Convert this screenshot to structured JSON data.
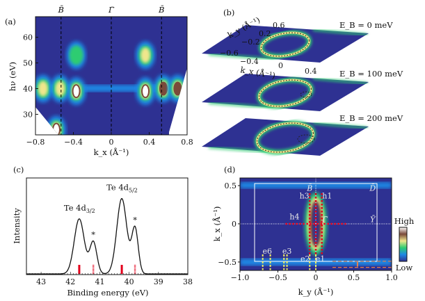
{
  "chart_data": [
    {
      "panel": "(a)",
      "type": "heatmap",
      "xlabel": "k_x (Å⁻¹)",
      "ylabel": "hν (eV)",
      "xlim": [
        -0.8,
        0.8
      ],
      "ylim": [
        22,
        68
      ],
      "xticks": [
        "−0.8",
        "−0.4",
        "0",
        "0.4",
        "0.8"
      ],
      "xtick_values": [
        -0.8,
        -0.4,
        0,
        0.4,
        0.8
      ],
      "yticks": [
        "30",
        "40",
        "50",
        "60"
      ],
      "ytick_values": [
        30,
        40,
        50,
        60
      ],
      "markers": [
        {
          "label": "B̄",
          "x": -0.53
        },
        {
          "label": "Γ̄",
          "x": 0
        },
        {
          "label": "B̄",
          "x": 0.53
        }
      ],
      "hot_spots": [
        {
          "x": -0.37,
          "y": 39,
          "level": 1.0
        },
        {
          "x": 0.36,
          "y": 39,
          "level": 1.0
        },
        {
          "x": 0.55,
          "y": 40,
          "level": 0.9
        },
        {
          "x": 0.7,
          "y": 40,
          "level": 0.8
        },
        {
          "x": -0.58,
          "y": 24,
          "level": 1.0
        },
        {
          "x": -0.72,
          "y": 40,
          "level": 0.6
        },
        {
          "x": -0.54,
          "y": 40,
          "level": 0.6
        },
        {
          "x": -0.37,
          "y": 53,
          "level": 0.45
        },
        {
          "x": 0.36,
          "y": 53,
          "level": 0.55
        }
      ],
      "colormap": [
        "#2e3192",
        "#1e88e5",
        "#2ecc71",
        "#f0e68c",
        "#7b4a3a",
        "#ffffff"
      ]
    },
    {
      "panel": "(b)",
      "type": "heatmap",
      "slices": [
        {
          "label": "E_B = 0 meV",
          "prefix": "E",
          "sub": "B",
          "value": "= 0 meV"
        },
        {
          "label": "E_B = 100 meV",
          "prefix": "E",
          "sub": "B",
          "value": "= 100 meV"
        },
        {
          "label": "E_B = 200 meV",
          "prefix": "E",
          "sub": "B",
          "value": "= 200 meV"
        }
      ],
      "ky_ticks": [
        "0.6",
        "0.2",
        "−0.2",
        "−0.6"
      ],
      "kx_ticks": [
        "−0.4",
        "0",
        "0.4"
      ],
      "ky_label": "k_y (Å⁻¹)",
      "kx_label": "k_x (Å⁻¹)"
    },
    {
      "panel": "(c)",
      "type": "line",
      "xlabel": "Binding energy (eV)",
      "ylabel": "Intensity",
      "xlim": [
        43.5,
        38
      ],
      "x_reversed": true,
      "xticks": [
        "43",
        "42",
        "41",
        "40",
        "39",
        "38"
      ],
      "xtick_values": [
        43,
        42,
        41,
        40,
        39,
        38
      ],
      "peaks": [
        {
          "center": 41.7,
          "height": 0.57,
          "width": 0.17
        },
        {
          "center": 41.22,
          "height": 0.33,
          "width": 0.12
        },
        {
          "center": 40.25,
          "height": 0.78,
          "width": 0.17
        },
        {
          "center": 39.8,
          "height": 0.47,
          "width": 0.11
        }
      ],
      "annotations": [
        {
          "text": "Te 4d",
          "sub": "3/2",
          "x": 41.7
        },
        {
          "text": "*",
          "x": 41.22
        },
        {
          "text": "Te 4d",
          "sub": "5/2",
          "x": 40.25
        },
        {
          "text": "*",
          "x": 39.8
        }
      ],
      "component_markers": [
        {
          "x": 41.7,
          "style": "solid"
        },
        {
          "x": 41.22,
          "style": "dotted"
        },
        {
          "x": 40.25,
          "style": "solid"
        },
        {
          "x": 39.8,
          "style": "dotted"
        }
      ],
      "marker_color": "#e3001b"
    },
    {
      "panel": "(d)",
      "type": "heatmap",
      "xlabel": "k_y (Å⁻¹)",
      "ylabel": "k_x (Å⁻¹)",
      "xlim": [
        -1.0,
        1.0
      ],
      "ylim": [
        -0.61,
        0.6
      ],
      "xticks": [
        "−1.0",
        "−0.5",
        "0",
        "0.5",
        "1.0"
      ],
      "xtick_values": [
        -1.0,
        -0.5,
        0,
        0.5,
        1.0
      ],
      "yticks": [
        "0.5",
        "0",
        "−0.5"
      ],
      "ytick_values": [
        0.5,
        0,
        -0.5
      ],
      "points": [
        {
          "label": "B̄",
          "x": -0.08,
          "y": 0.47
        },
        {
          "label": "D̄",
          "x": 0.75,
          "y": 0.47
        },
        {
          "label": "Γ̄",
          "x": 0.12,
          "y": 0.06
        },
        {
          "label": "Ȳ",
          "x": 0.75,
          "y": 0.06
        }
      ],
      "hole_cuts": [
        {
          "label": "h1",
          "x": 0.08
        },
        {
          "label": "h3",
          "x": -0.08
        },
        {
          "label": "h4",
          "axis": "horizontal",
          "y": 0
        }
      ],
      "electron_cuts": [
        {
          "label": "e1",
          "x": 0.0
        },
        {
          "label": "e2",
          "x": -0.08
        },
        {
          "label": "e3",
          "x": -0.38
        },
        {
          "label": "e6",
          "x": -0.7
        }
      ],
      "electron_cut_xs": [
        -0.7,
        -0.6,
        -0.42,
        -0.38,
        -0.08,
        0.0
      ],
      "hole_cut_color": "#e3001b",
      "electron_cut_color": "#f5f060",
      "gap_color": "#e8804a",
      "colorbar": {
        "high": "High",
        "low": "Low"
      }
    }
  ]
}
